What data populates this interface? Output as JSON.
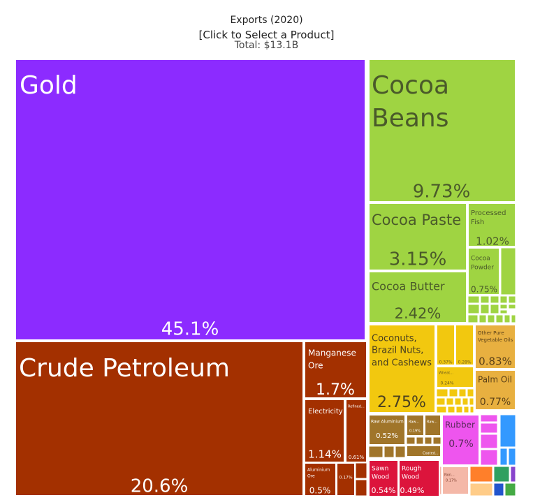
{
  "header": {
    "title": "Exports (2020)",
    "subtitle": "[Click to Select a Product]",
    "total": "Total: $13.1B"
  },
  "chart_data": {
    "type": "treemap",
    "title": "Exports (2020)",
    "subtitle": "[Click to Select a Product]",
    "total": "Total: $13.1B",
    "unit": "% of total exports",
    "items": [
      {
        "name": "Gold",
        "value": 45.1,
        "label": "45.1%",
        "color": "#8c2bff"
      },
      {
        "name": "Crude Petroleum",
        "value": 20.6,
        "label": "20.6%",
        "color": "#a33000"
      },
      {
        "name": "Manganese Ore",
        "value": 1.7,
        "label": "1.7%",
        "color": "#a33000"
      },
      {
        "name": "Electricity",
        "value": 1.14,
        "label": "1.14%",
        "color": "#a33000"
      },
      {
        "name": "Refined...",
        "value": 0.61,
        "label": "0.61%",
        "color": "#a33000"
      },
      {
        "name": "Aluminium Ore",
        "value": 0.5,
        "label": "0.5%",
        "color": "#a33000"
      },
      {
        "name": "",
        "value": 0.17,
        "label": "0.17%",
        "color": "#a33000"
      },
      {
        "name": "Cocoa Beans",
        "value": 9.73,
        "label": "9.73%",
        "color": "#9fd442"
      },
      {
        "name": "Cocoa Paste",
        "value": 3.15,
        "label": "3.15%",
        "color": "#9fd442"
      },
      {
        "name": "Processed Fish",
        "value": 1.02,
        "label": "1.02%",
        "color": "#9fd442"
      },
      {
        "name": "Cocoa Powder",
        "value": 0.75,
        "label": "0.75%",
        "color": "#9fd442"
      },
      {
        "name": "Cocoa Butter",
        "value": 2.42,
        "label": "2.42%",
        "color": "#9fd442"
      },
      {
        "name": "Coconuts, Brazil Nuts, and Cashews",
        "value": 2.75,
        "label": "2.75%",
        "color": "#f2c80f"
      },
      {
        "name": "",
        "value": 0.37,
        "label": "0.37%",
        "color": "#f2c80f"
      },
      {
        "name": "",
        "value": 0.28,
        "label": "0.28%",
        "color": "#f2c80f"
      },
      {
        "name": "Wheat...",
        "value": 0.24,
        "label": "0.24%",
        "color": "#f2c80f"
      },
      {
        "name": "Other Pure Vegetable Oils",
        "value": 0.83,
        "label": "0.83%",
        "color": "#e8b040"
      },
      {
        "name": "Palm Oil",
        "value": 0.77,
        "label": "0.77%",
        "color": "#e8b040"
      },
      {
        "name": "Raw Aluminium",
        "value": 0.52,
        "label": "0.52%",
        "color": "#a0752a"
      },
      {
        "name": "Raw...",
        "value": 0.19,
        "label": "0.19%",
        "color": "#a0752a"
      },
      {
        "name": "Raw...",
        "value": 0,
        "label": "",
        "color": "#a0752a"
      },
      {
        "name": "Coated...",
        "value": 0,
        "label": "",
        "color": "#a0752a"
      },
      {
        "name": "Rubber",
        "value": 0.7,
        "label": "0.7%",
        "color": "#ee55ee"
      },
      {
        "name": "Sawn Wood",
        "value": 0.54,
        "label": "0.54%",
        "color": "#dc143c"
      },
      {
        "name": "Rough Wood",
        "value": 0.49,
        "label": "0.49%",
        "color": "#dc143c"
      },
      {
        "name": "Non...",
        "value": 0.17,
        "label": "0.17%",
        "color": "#f4b8a8"
      }
    ],
    "legend": "none"
  }
}
